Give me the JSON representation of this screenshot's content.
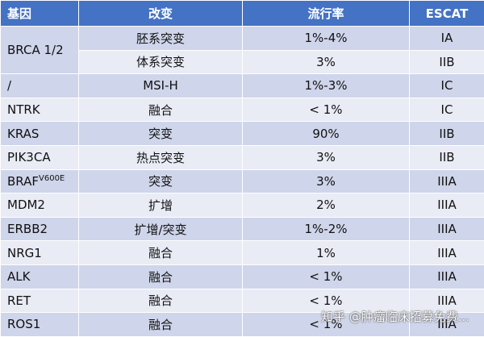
{
  "table": {
    "header": [
      "基因",
      "改变",
      "流行率",
      "ESCAT"
    ],
    "rows": [
      {
        "gene": "BRCA 1/2",
        "variants": [
          {
            "change": "胚系突变",
            "rate": "1%-4%",
            "escat": "IA"
          },
          {
            "change": "体系突变",
            "rate": "3%",
            "escat": "IIB"
          }
        ]
      },
      {
        "gene": "/",
        "variants": [
          {
            "change": "MSI-H",
            "rate": "1%-3%",
            "escat": "IC"
          }
        ]
      },
      {
        "gene": "NTRK",
        "variants": [
          {
            "change": "融合",
            "rate": "< 1%",
            "escat": "IC"
          }
        ]
      },
      {
        "gene": "KRAS",
        "variants": [
          {
            "change": "突变",
            "rate": "90%",
            "escat": "IIB"
          }
        ]
      },
      {
        "gene": "PIK3CA",
        "variants": [
          {
            "change": "热点突变",
            "rate": "3%",
            "escat": "IIB"
          }
        ]
      },
      {
        "gene": "BRAF",
        "gene_sup": "V600E",
        "variants": [
          {
            "change": "突变",
            "rate": "3%",
            "escat": "IIIA"
          }
        ]
      },
      {
        "gene": "MDM2",
        "variants": [
          {
            "change": "扩增",
            "rate": "2%",
            "escat": "IIIA"
          }
        ]
      },
      {
        "gene": "ERBB2",
        "variants": [
          {
            "change": "扩增/突变",
            "rate": "1%-2%",
            "escat": "IIIA"
          }
        ]
      },
      {
        "gene": "NRG1",
        "variants": [
          {
            "change": "融合",
            "rate": "1%",
            "escat": "IIIA"
          }
        ]
      },
      {
        "gene": "ALK",
        "variants": [
          {
            "change": "融合",
            "rate": "< 1%",
            "escat": "IIIA"
          }
        ]
      },
      {
        "gene": "RET",
        "variants": [
          {
            "change": "融合",
            "rate": "< 1%",
            "escat": "IIIA"
          }
        ]
      },
      {
        "gene": "ROS1",
        "variants": [
          {
            "change": "融合",
            "rate": "< 1%",
            "escat": "IIIA"
          }
        ]
      }
    ]
  },
  "watermark": "知乎 @肿瘤临床招募免费..."
}
